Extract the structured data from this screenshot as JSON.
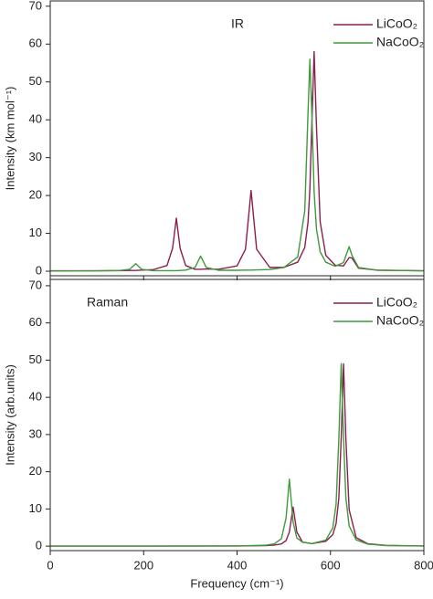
{
  "chart_data": [
    {
      "type": "line",
      "annotation": "IR",
      "y_label": "Intensity (km mol⁻¹)",
      "x": [
        0,
        100,
        150,
        170,
        183,
        196,
        220,
        250,
        262,
        270,
        278,
        290,
        310,
        322,
        334,
        360,
        400,
        418,
        430,
        442,
        470,
        500,
        530,
        545,
        552,
        556,
        560,
        565,
        570,
        578,
        590,
        610,
        628,
        640,
        646,
        660,
        700,
        800
      ],
      "series": [
        {
          "name": "LiCoO₂",
          "color": "#8c1d4f",
          "values": [
            0.1,
            0.1,
            0.15,
            0.2,
            0.2,
            0.3,
            0.4,
            1.5,
            6.1,
            14,
            6.1,
            1.5,
            0.5,
            0.5,
            0.6,
            0.5,
            1.4,
            5.8,
            21.3,
            5.8,
            1.0,
            1.0,
            2.4,
            6.3,
            13,
            21.9,
            38.4,
            58,
            38.4,
            13,
            4.2,
            1.6,
            1.4,
            3.6,
            3.5,
            0.8,
            0.3,
            0.1
          ]
        },
        {
          "name": "NaCoO₂",
          "color": "#3f9a3a",
          "values": [
            0.05,
            0.1,
            0.2,
            0.5,
            2,
            0.5,
            0.15,
            0.15,
            0.15,
            0.15,
            0.2,
            0.3,
            1.0,
            4,
            1.0,
            0.25,
            0.25,
            0.3,
            0.3,
            0.35,
            0.45,
            0.95,
            3.8,
            16,
            42,
            56,
            42,
            21,
            11.2,
            5.1,
            2.4,
            1.3,
            2.3,
            6.5,
            4.2,
            1.0,
            0.25,
            0.1
          ]
        }
      ],
      "xlim": [
        0,
        800
      ],
      "xticks": [
        0,
        200,
        400,
        600,
        800
      ],
      "ylim": [
        -1.2,
        71.4
      ],
      "yticks": [
        0,
        10,
        20,
        30,
        40,
        50,
        60,
        70
      ],
      "legend": "upper right"
    },
    {
      "type": "line",
      "annotation": "Raman",
      "y_label": "Intensity (arb.units)",
      "x_label": "Frequency (cm⁻¹)",
      "x": [
        0,
        200,
        400,
        460,
        480,
        495,
        505,
        512,
        520,
        528,
        540,
        560,
        590,
        605,
        612,
        618,
        623,
        628,
        633,
        640,
        655,
        680,
        720,
        800
      ],
      "series": [
        {
          "name": "LiCoO₂",
          "color": "#8c1d4f",
          "values": [
            0,
            0,
            0.05,
            0.15,
            0.3,
            0.6,
            1.5,
            3.8,
            10.5,
            3.8,
            1.1,
            0.7,
            1.3,
            3.1,
            6.0,
            13,
            29,
            49,
            29,
            9.8,
            2.3,
            0.64,
            0.2,
            0.05
          ]
        },
        {
          "name": "NaCoO₂",
          "color": "#3f9a3a",
          "values": [
            0,
            0,
            0.05,
            0.24,
            0.62,
            2.0,
            7.6,
            18,
            6.5,
            2.2,
            1.05,
            0.7,
            1.6,
            4.9,
            11.2,
            29,
            49,
            29,
            13,
            5.4,
            1.7,
            0.54,
            0.15,
            0.05
          ]
        }
      ],
      "xlim": [
        0,
        800
      ],
      "xticks": [
        0,
        200,
        400,
        600,
        800
      ],
      "ylim": [
        -1.2,
        71.7
      ],
      "yticks": [
        0,
        10,
        20,
        30,
        40,
        50,
        60,
        70
      ],
      "legend": "upper right"
    }
  ]
}
